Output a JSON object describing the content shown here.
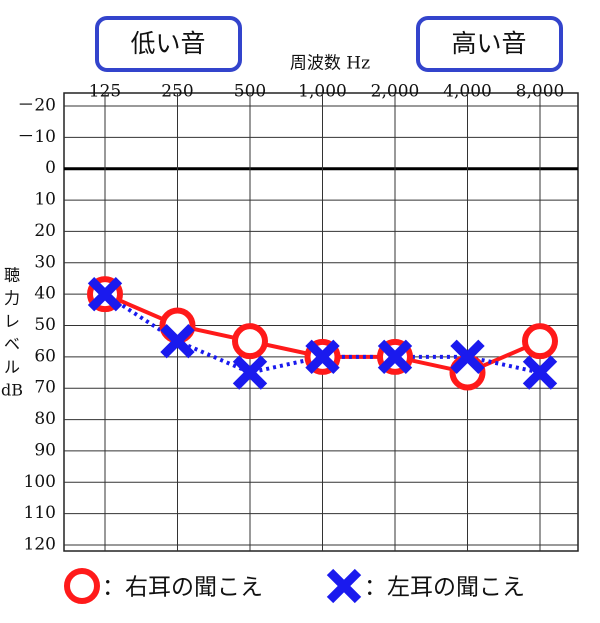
{
  "chart_data": {
    "type": "line",
    "x_label": "周波数 Hz",
    "y_label": [
      "聴",
      "力",
      "レ",
      "ベ",
      "ル",
      "dB"
    ],
    "annotations": [
      "低い音",
      "高い音"
    ],
    "categories": [
      "125",
      "250",
      "500",
      "1,000",
      "2,000",
      "4,000",
      "8,000"
    ],
    "series": [
      {
        "name": "：右耳の聞こえ",
        "color": "#ff1a1a",
        "marker": "circle",
        "line_style": "solid",
        "values": [
          40,
          50,
          55,
          60,
          60,
          65,
          55
        ]
      },
      {
        "name": "：左耳の聞こえ",
        "color": "#1a1aee",
        "marker": "x",
        "line_style": "dotted",
        "values": [
          40,
          55,
          65,
          60,
          60,
          60,
          65
        ]
      }
    ],
    "ylim": [
      -20,
      120
    ],
    "yticks": [
      {
        "value": -20,
        "label": "－20"
      },
      {
        "value": -10,
        "label": "－10"
      },
      0,
      10,
      20,
      30,
      40,
      50,
      60,
      70,
      80,
      90,
      100,
      110,
      120
    ],
    "inverted_y": true,
    "grid": true
  }
}
